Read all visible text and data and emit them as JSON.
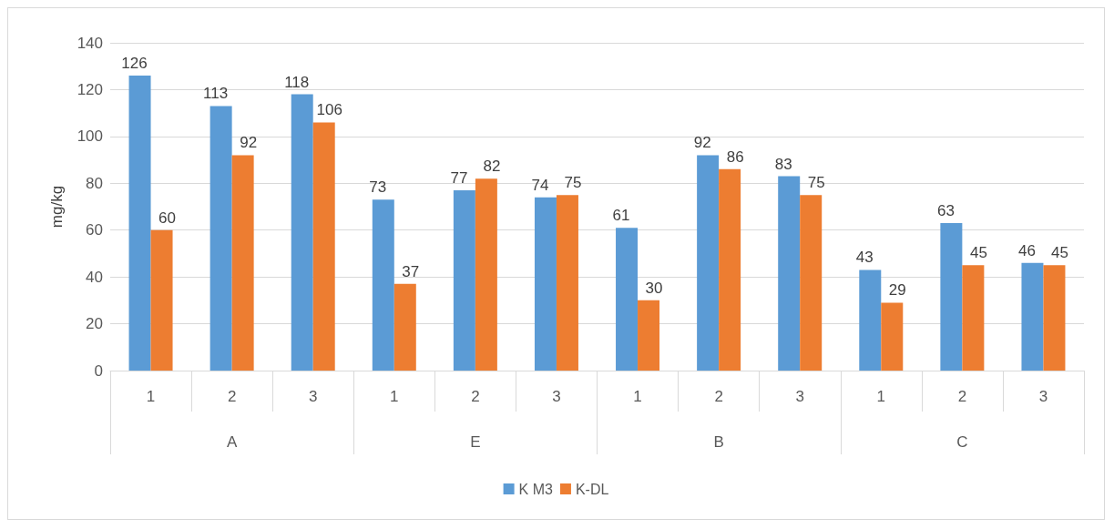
{
  "chart_data": {
    "type": "bar",
    "ylabel": "mg/kg",
    "categories": [
      "1",
      "2",
      "3",
      "1",
      "2",
      "3",
      "1",
      "2",
      "3",
      "1",
      "2",
      "3"
    ],
    "annotations": [
      "A",
      "E",
      "B",
      "C"
    ],
    "series": [
      {
        "name": "K M3",
        "color": "#5b9bd5",
        "values": [
          126,
          113,
          118,
          73,
          77,
          74,
          61,
          92,
          83,
          43,
          63,
          46
        ]
      },
      {
        "name": "K-DL",
        "color": "#ed7d31",
        "values": [
          60,
          92,
          106,
          37,
          82,
          75,
          30,
          86,
          75,
          29,
          45,
          45
        ]
      }
    ],
    "ylim": [
      0,
      140
    ],
    "yticks": [
      0,
      20,
      40,
      60,
      80,
      100,
      120,
      140
    ],
    "grid": "y",
    "legend": "bottom",
    "data_labels": true
  }
}
